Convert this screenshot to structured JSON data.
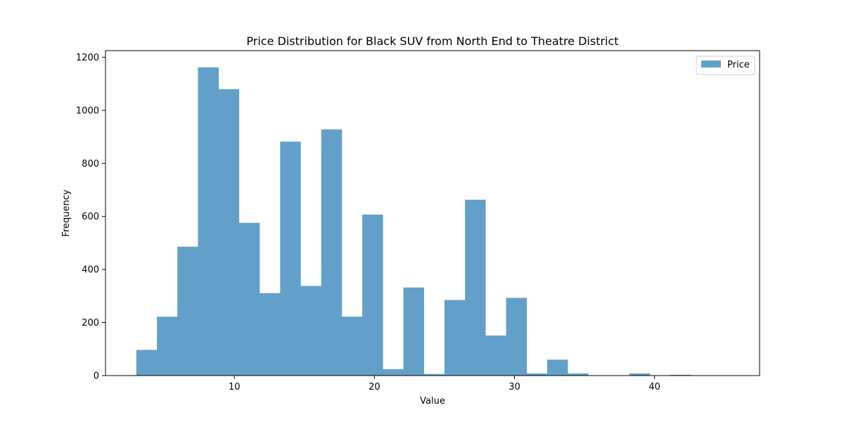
{
  "chart_data": {
    "type": "bar",
    "title": "Price Distribution for Black SUV from North End to Theatre District",
    "xlabel": "Value",
    "ylabel": "Frequency",
    "xlim": [
      0.8,
      47.5
    ],
    "ylim": [
      0,
      1225
    ],
    "xticks": [
      10,
      20,
      30,
      40
    ],
    "yticks": [
      0,
      200,
      400,
      600,
      800,
      1000,
      1200
    ],
    "grid": false,
    "legend": {
      "position": "top-right",
      "entries": [
        "Price"
      ]
    },
    "bar_color": "#62a0ca",
    "bin_edges": [
      3.0,
      4.47,
      5.93,
      7.4,
      8.87,
      10.33,
      11.8,
      13.27,
      14.73,
      16.2,
      17.67,
      19.13,
      20.6,
      22.07,
      23.53,
      25.0,
      26.47,
      27.93,
      29.4,
      30.87,
      32.33,
      33.8,
      35.27,
      36.73,
      38.2,
      39.67,
      41.13,
      42.6,
      44.07,
      45.53,
      47.0
    ],
    "series": [
      {
        "name": "Price",
        "values": [
          97,
          222,
          486,
          1162,
          1080,
          576,
          311,
          882,
          338,
          928,
          222,
          607,
          24,
          332,
          6,
          285,
          663,
          151,
          293,
          8,
          60,
          8,
          0,
          0,
          8,
          0,
          3,
          0,
          0,
          0
        ]
      }
    ]
  }
}
